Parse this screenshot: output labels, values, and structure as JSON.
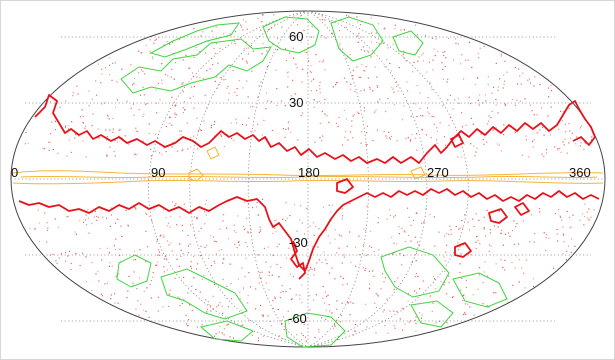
{
  "map": {
    "projection": "hammer-aitoff",
    "latitude_labels": [
      "60",
      "30",
      "-30",
      "-60"
    ],
    "longitude_labels": [
      "0",
      "90",
      "180",
      "270",
      "360"
    ],
    "graticule_style": "dotted",
    "colors": {
      "outline": "#444444",
      "graticule": "#8a8a8a",
      "dots": "#e53a3a",
      "red_contour": "#e8121a",
      "green_contour": "#3fd63f",
      "yellow_contour": "#f5b53a"
    }
  }
}
